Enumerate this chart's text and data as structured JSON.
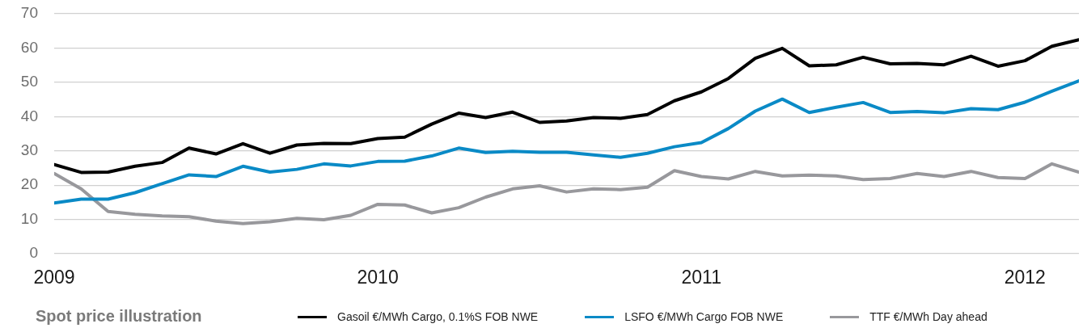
{
  "chart_data": {
    "type": "line",
    "title": "Spot price illustration",
    "x": [
      "2009-01",
      "2009-02",
      "2009-03",
      "2009-04",
      "2009-05",
      "2009-06",
      "2009-07",
      "2009-08",
      "2009-09",
      "2009-10",
      "2009-11",
      "2009-12",
      "2010-01",
      "2010-02",
      "2010-03",
      "2010-04",
      "2010-05",
      "2010-06",
      "2010-07",
      "2010-08",
      "2010-09",
      "2010-10",
      "2010-11",
      "2010-12",
      "2011-01",
      "2011-02",
      "2011-03",
      "2011-04",
      "2011-05",
      "2011-06",
      "2011-07",
      "2011-08",
      "2011-09",
      "2011-10",
      "2011-11",
      "2011-12",
      "2012-01",
      "2012-02",
      "2012-03"
    ],
    "series": [
      {
        "name": "Gasoil €/MWh Cargo, 0.1%S FOB NWE",
        "color": "#000000",
        "values": [
          26.0,
          23.7,
          23.8,
          25.5,
          26.6,
          30.8,
          29.1,
          32.1,
          29.3,
          31.7,
          32.2,
          32.1,
          33.6,
          34.0,
          37.8,
          41.0,
          39.7,
          41.3,
          38.3,
          38.7,
          39.7,
          39.5,
          40.6,
          44.6,
          47.2,
          51.1,
          57.0,
          59.9,
          54.8,
          55.1,
          57.3,
          55.4,
          55.5,
          55.1,
          57.6,
          54.7,
          56.3,
          60.5,
          62.4
        ]
      },
      {
        "name": "LSFO €/MWh Cargo FOB NWE",
        "color": "#0a8ac6",
        "values": [
          14.8,
          15.9,
          15.9,
          17.8,
          20.4,
          23.0,
          22.5,
          25.5,
          23.8,
          24.6,
          26.2,
          25.6,
          26.9,
          27.0,
          28.5,
          30.8,
          29.5,
          29.9,
          29.6,
          29.6,
          28.8,
          28.1,
          29.3,
          31.2,
          32.4,
          36.5,
          41.6,
          45.1,
          41.2,
          42.7,
          44.1,
          41.2,
          41.5,
          41.1,
          42.3,
          42.0,
          44.2,
          47.4,
          50.4
        ]
      },
      {
        "name": "TTF €/MWh Day ahead",
        "color": "#98989c",
        "values": [
          23.4,
          18.9,
          12.3,
          11.5,
          11.0,
          10.8,
          9.5,
          8.8,
          9.3,
          10.3,
          9.9,
          11.2,
          14.4,
          14.2,
          11.9,
          13.4,
          16.5,
          18.9,
          19.8,
          18.0,
          18.9,
          18.7,
          19.4,
          24.2,
          22.5,
          21.8,
          24.0,
          22.7,
          22.9,
          22.7,
          21.6,
          21.9,
          23.4,
          22.5,
          24.0,
          22.2,
          21.9,
          26.2,
          23.8
        ]
      }
    ],
    "xlim": [
      "2009-01",
      "2012-03"
    ],
    "xticks": [
      "2009",
      "2010",
      "2011",
      "2012"
    ],
    "ylim": [
      0,
      70
    ],
    "yticks": [
      0,
      10,
      20,
      30,
      40,
      50,
      60,
      70
    ],
    "grid": "y",
    "legend": "bottom",
    "marker": "none",
    "line_style": "solid"
  }
}
